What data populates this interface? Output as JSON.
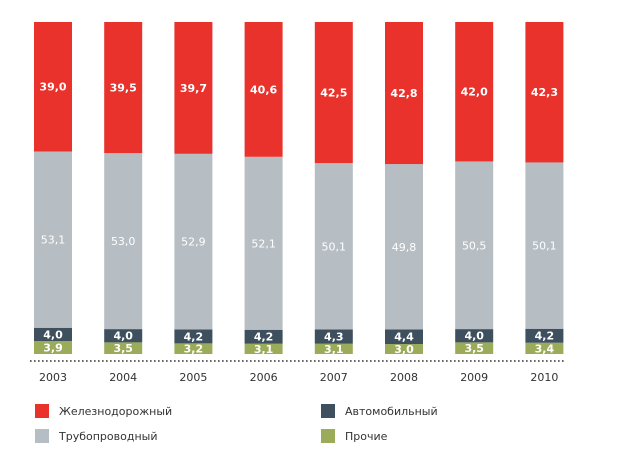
{
  "chart_data": {
    "type": "bar",
    "stacked": true,
    "stack_mode": "percent",
    "categories": [
      "2003",
      "2004",
      "2005",
      "2006",
      "2007",
      "2008",
      "2009",
      "2010"
    ],
    "series": [
      {
        "name": "Прочие",
        "color": "#9aac5a",
        "values": [
          "3,9",
          "3,5",
          "3,2",
          "3,1",
          "3,1",
          "3,0",
          "3,5",
          "3,4"
        ]
      },
      {
        "name": "Автомобильный",
        "color": "#3e4f5e",
        "values": [
          "4,0",
          "4,0",
          "4,2",
          "4,2",
          "4,3",
          "4,4",
          "4,0",
          "4,2"
        ]
      },
      {
        "name": "Трубопроводный",
        "color": "#b6bdc3",
        "values": [
          "53,1",
          "53,0",
          "52,9",
          "52,1",
          "50,1",
          "49,8",
          "50,5",
          "50,1"
        ]
      },
      {
        "name": "Железнодорожный",
        "color": "#e8322b",
        "values": [
          "39,0",
          "39,5",
          "39,7",
          "40,6",
          "42,5",
          "42,8",
          "42,0",
          "42,3"
        ]
      }
    ],
    "legend_position": "bottom",
    "grid": false,
    "baseline_style": "dotted"
  },
  "legend": [
    {
      "label": "Железнодорожный",
      "color": "#e8322b"
    },
    {
      "label": "Трубопроводный",
      "color": "#b6bdc3"
    },
    {
      "label": "Автомобильный",
      "color": "#3e4f5e"
    },
    {
      "label": "Прочие",
      "color": "#9aac5a"
    }
  ]
}
